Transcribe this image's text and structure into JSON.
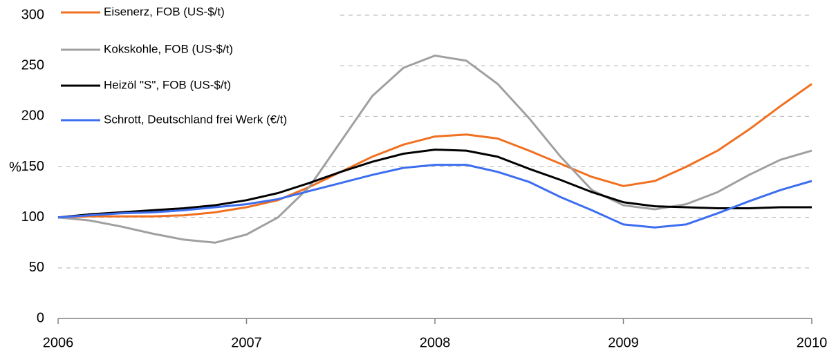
{
  "chart_data": {
    "type": "line",
    "y_label": "%",
    "x": [
      2006,
      2006.167,
      2006.333,
      2006.5,
      2006.667,
      2006.833,
      2007,
      2007.167,
      2007.333,
      2007.5,
      2007.667,
      2007.833,
      2008,
      2008.167,
      2008.333,
      2008.5,
      2008.667,
      2008.833,
      2009,
      2009.167,
      2009.333,
      2009.5,
      2009.667,
      2009.833,
      2010
    ],
    "series": [
      {
        "name": "Eisenerz, FOB (US-$/t)",
        "color": "#f07020",
        "values": [
          100,
          101,
          101,
          101,
          102,
          105,
          110,
          117,
          130,
          145,
          160,
          172,
          180,
          182,
          178,
          166,
          153,
          140,
          131,
          136,
          150,
          166,
          187,
          210,
          232
        ]
      },
      {
        "name": "Kokskohle, FOB (US-$/t)",
        "color": "#a0a0a0",
        "values": [
          100,
          97,
          91,
          84,
          78,
          75,
          83,
          100,
          130,
          175,
          220,
          248,
          260,
          255,
          232,
          198,
          160,
          127,
          112,
          108,
          113,
          125,
          142,
          157,
          166
        ]
      },
      {
        "name": "Heizöl \"S\", FOB (US-$/t)",
        "color": "#000000",
        "values": [
          100,
          103,
          105,
          107,
          109,
          112,
          117,
          124,
          134,
          145,
          155,
          163,
          167,
          166,
          160,
          148,
          137,
          125,
          115,
          111,
          110,
          109,
          109,
          110,
          110
        ]
      },
      {
        "name": "Schrott, Deutschland frei Werk (€/t)",
        "color": "#3d6ef0",
        "values": [
          100,
          102,
          104,
          105,
          107,
          110,
          113,
          118,
          126,
          134,
          142,
          149,
          152,
          152,
          145,
          135,
          120,
          107,
          93,
          90,
          93,
          104,
          116,
          127,
          136
        ]
      }
    ],
    "xlim": [
      2006,
      2010
    ],
    "xticks": [
      2006,
      2007,
      2008,
      2009,
      2010
    ],
    "ylim": [
      0,
      300
    ],
    "yticks": [
      0,
      50,
      100,
      150,
      200,
      250,
      300
    ],
    "grid": true
  }
}
